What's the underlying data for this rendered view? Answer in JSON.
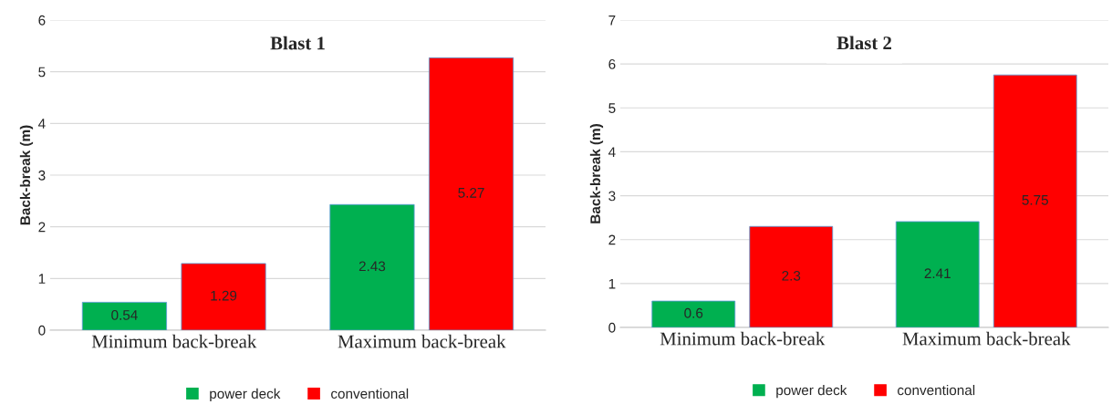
{
  "chart_data": [
    {
      "type": "bar",
      "title": "Blast 1",
      "ylabel": "Back-break (m)",
      "categories": [
        "Minimum back-break",
        "Maximum back-break"
      ],
      "series": [
        {
          "name": "power deck",
          "color": "#00b050",
          "values": [
            0.54,
            2.43
          ]
        },
        {
          "name": "conventional",
          "color": "#ff0000",
          "values": [
            1.29,
            5.27
          ]
        }
      ],
      "ylim": [
        0,
        6
      ],
      "yticks": [
        0,
        1,
        2,
        3,
        4,
        5,
        6
      ],
      "data_labels": true,
      "grid": "y",
      "legend": "bottom"
    },
    {
      "type": "bar",
      "title": "Blast 2",
      "ylabel": "Back-break (m)",
      "categories": [
        "Minimum back-break",
        "Maximum back-break"
      ],
      "series": [
        {
          "name": "power deck",
          "color": "#00b050",
          "values": [
            0.6,
            2.41
          ]
        },
        {
          "name": "conventional",
          "color": "#ff0000",
          "values": [
            2.3,
            5.75
          ]
        }
      ],
      "ylim": [
        0,
        7
      ],
      "yticks": [
        0,
        1,
        2,
        3,
        4,
        5,
        6,
        7
      ],
      "data_labels": true,
      "grid": "y",
      "legend": "bottom"
    }
  ]
}
